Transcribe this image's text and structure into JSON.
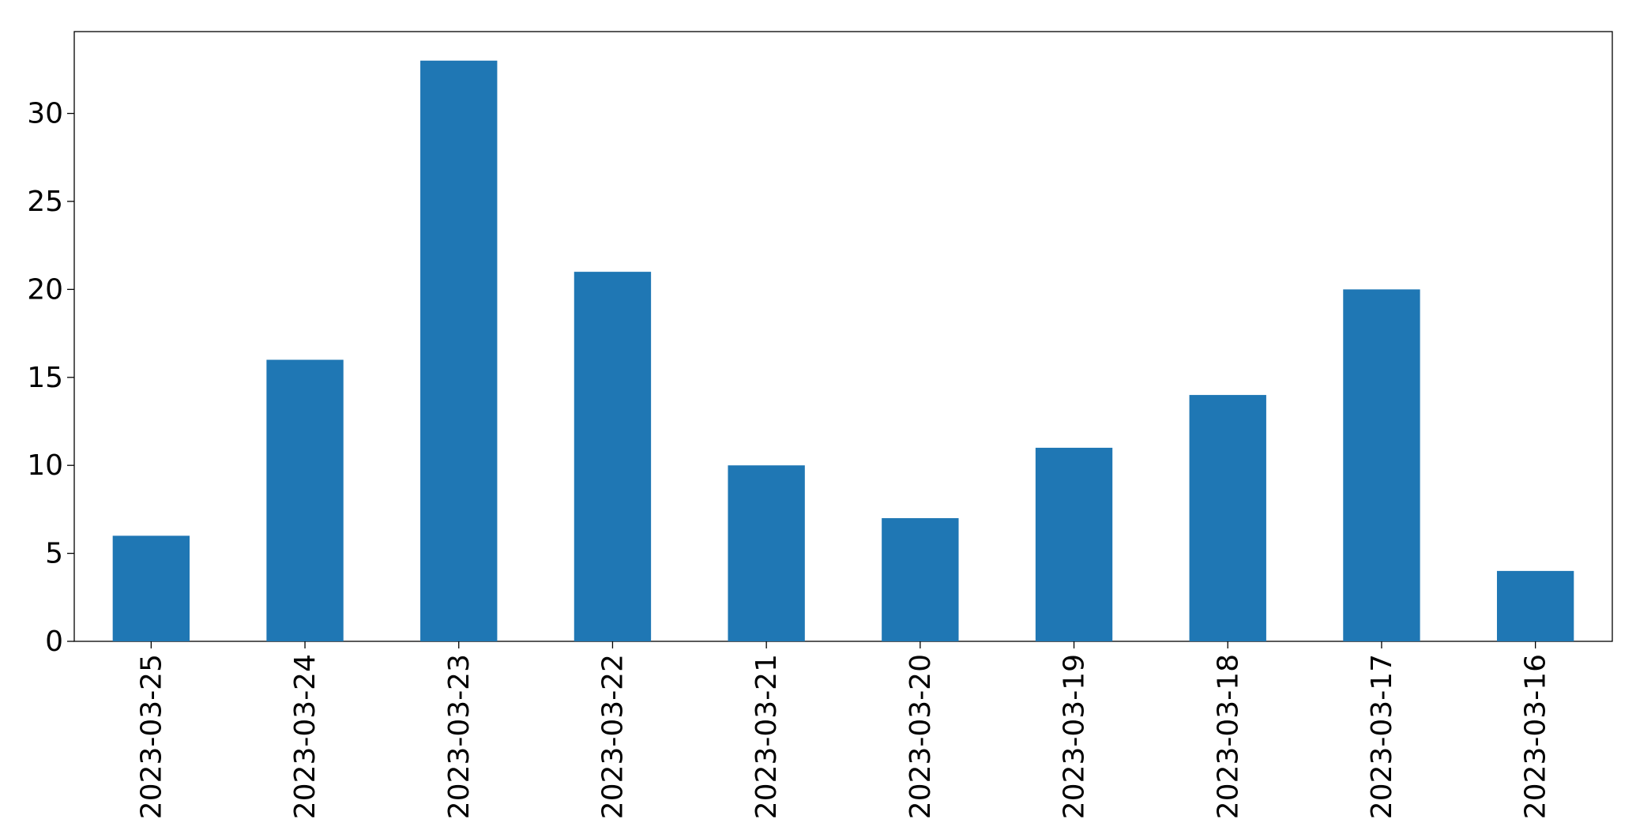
{
  "chart_data": {
    "type": "bar",
    "categories": [
      "2023-03-25",
      "2023-03-24",
      "2023-03-23",
      "2023-03-22",
      "2023-03-21",
      "2023-03-20",
      "2023-03-19",
      "2023-03-18",
      "2023-03-17",
      "2023-03-16"
    ],
    "values": [
      6,
      16,
      33,
      21,
      10,
      7,
      11,
      14,
      20,
      4
    ],
    "color": "#1f77b4",
    "ylim": [
      0,
      34.65
    ],
    "yticks": [
      0,
      5,
      10,
      15,
      20,
      25,
      30
    ],
    "grid": false
  }
}
